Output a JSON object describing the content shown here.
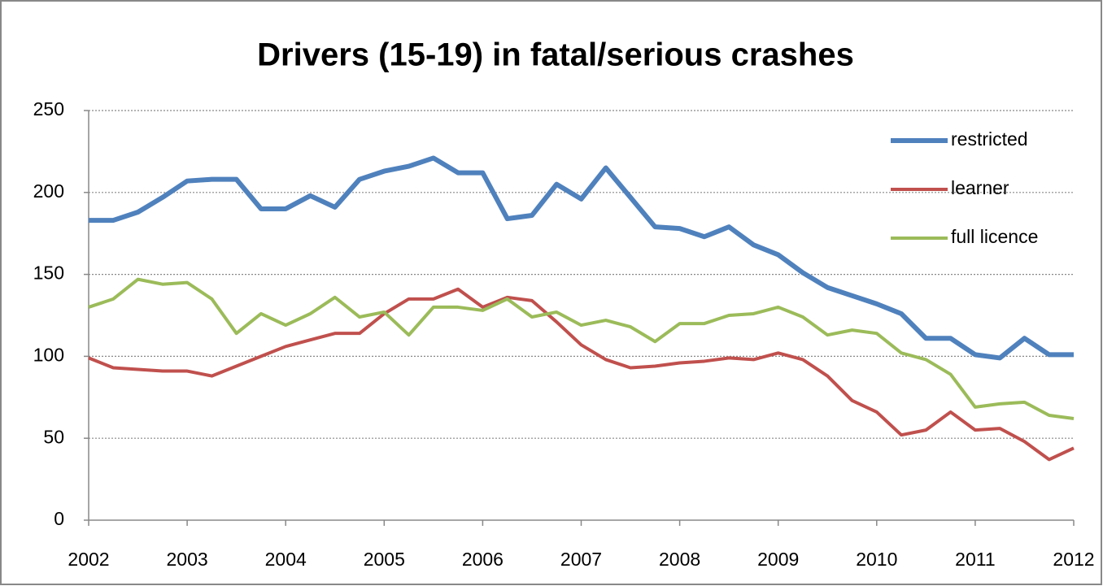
{
  "chart_data": {
    "type": "line",
    "title": "Drivers (15-19) in fatal/serious crashes",
    "x": [
      2002,
      2002.25,
      2002.5,
      2002.75,
      2003,
      2003.25,
      2003.5,
      2003.75,
      2004,
      2004.25,
      2004.5,
      2004.75,
      2005,
      2005.25,
      2005.5,
      2005.75,
      2006,
      2006.25,
      2006.5,
      2006.75,
      2007,
      2007.25,
      2007.5,
      2007.75,
      2008,
      2008.25,
      2008.5,
      2008.75,
      2009,
      2009.25,
      2009.5,
      2009.75,
      2010,
      2010.25,
      2010.5,
      2010.75,
      2011,
      2011.25,
      2011.5,
      2011.75,
      2012
    ],
    "series": [
      {
        "name": "restricted",
        "color": "#4f81bd",
        "values": [
          183,
          183,
          188,
          197,
          207,
          208,
          208,
          190,
          190,
          198,
          191,
          208,
          213,
          216,
          221,
          212,
          212,
          184,
          186,
          205,
          196,
          215,
          197,
          179,
          178,
          173,
          179,
          168,
          162,
          151,
          142,
          137,
          132,
          126,
          111,
          111,
          101,
          99,
          111,
          101,
          101
        ]
      },
      {
        "name": "learner",
        "color": "#c0504d",
        "values": [
          99,
          93,
          92,
          91,
          91,
          88,
          94,
          100,
          106,
          110,
          114,
          114,
          126,
          135,
          135,
          141,
          130,
          136,
          134,
          121,
          107,
          98,
          93,
          94,
          96,
          97,
          99,
          98,
          102,
          98,
          88,
          73,
          66,
          52,
          55,
          66,
          55,
          56,
          48,
          37,
          44
        ]
      },
      {
        "name": "full licence",
        "color": "#9bbb59",
        "values": [
          130,
          135,
          147,
          144,
          145,
          135,
          114,
          126,
          119,
          126,
          136,
          124,
          127,
          113,
          130,
          130,
          128,
          135,
          124,
          127,
          119,
          122,
          118,
          109,
          120,
          120,
          125,
          126,
          130,
          124,
          113,
          116,
          114,
          102,
          98,
          89,
          69,
          71,
          72,
          64,
          62
        ]
      }
    ],
    "xlim": [
      2002,
      2012
    ],
    "xticks": [
      2002,
      2003,
      2004,
      2005,
      2006,
      2007,
      2008,
      2009,
      2010,
      2011,
      2012
    ],
    "ylim": [
      0,
      250
    ],
    "yticks": [
      0,
      50,
      100,
      150,
      200,
      250
    ],
    "grid": true,
    "legend": "upper right"
  }
}
